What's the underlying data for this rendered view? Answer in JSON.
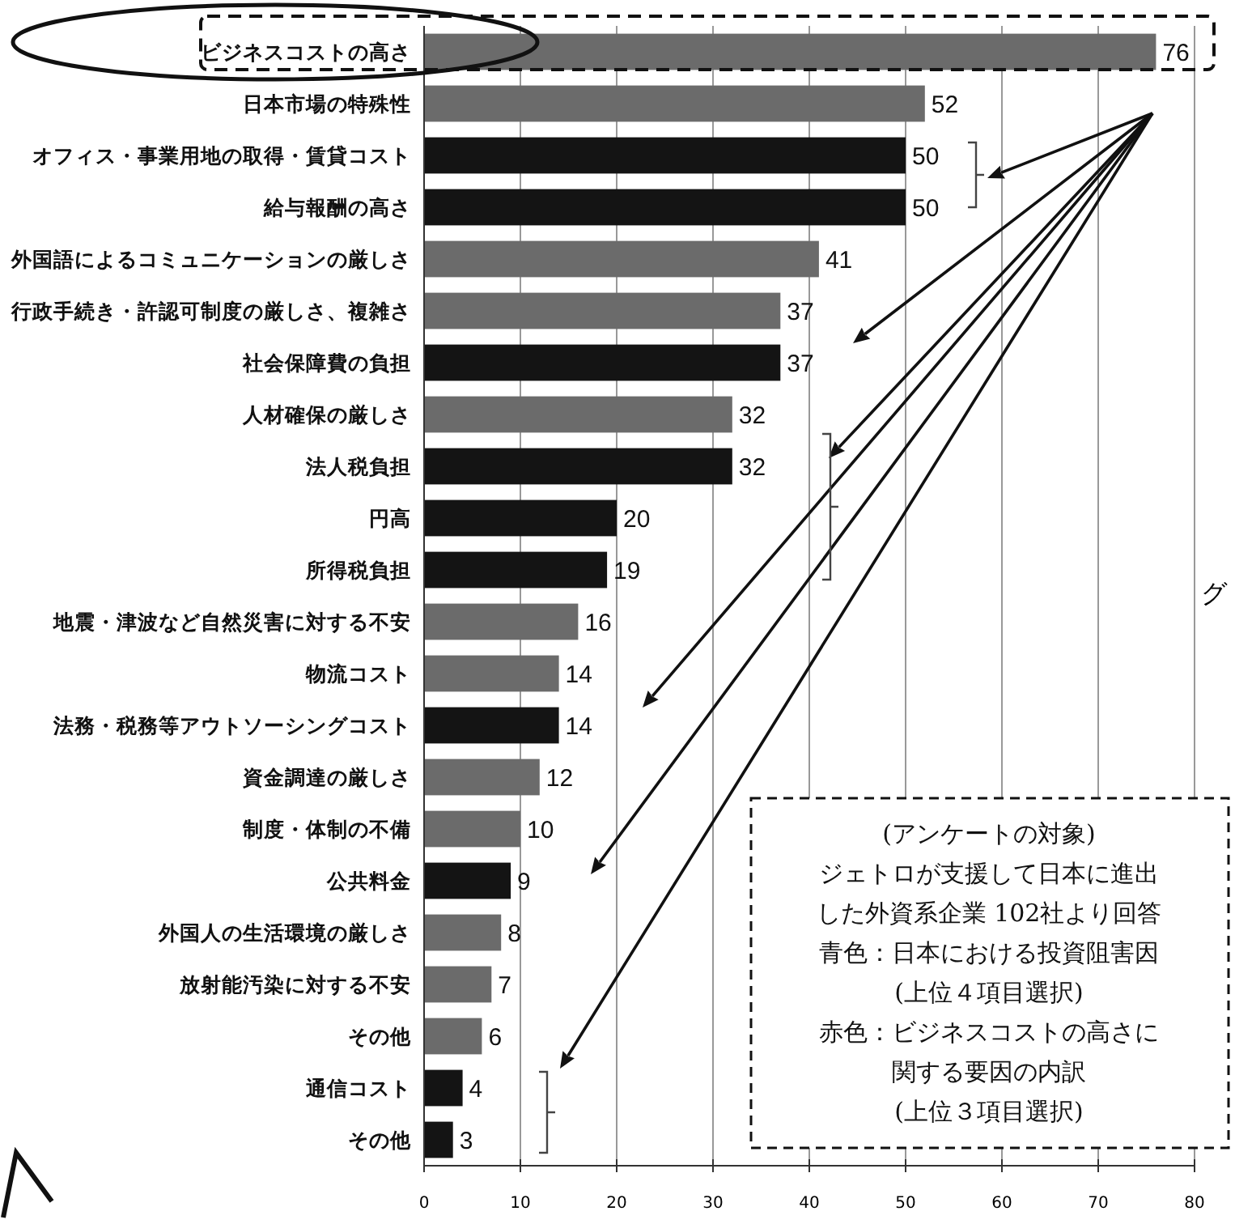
{
  "chart_data": {
    "type": "bar",
    "orientation": "horizontal",
    "categories": [
      "ビジネスコストの高さ",
      "日本市場の特殊性",
      "オフィス・事業用地の取得・賃貸コスト",
      "給与報酬の高さ",
      "外国語によるコミュニケーションの厳しさ",
      "行政手続き・許認可制度の厳しさ、複雑さ",
      "社会保障費の負担",
      "人材確保の厳しさ",
      "法人税負担",
      "円高",
      "所得税負担",
      "地震・津波など自然災害に対する不安",
      "物流コスト",
      "法務・税務等アウトソーシングコスト",
      "資金調達の厳しさ",
      "制度・体制の不備",
      "公共料金",
      "外国人の生活環境の厳しさ",
      "放射能汚染に対する不安",
      "その他",
      "通信コスト",
      "その他"
    ],
    "values": [
      76,
      52,
      50,
      50,
      41,
      37,
      37,
      32,
      32,
      20,
      19,
      16,
      14,
      14,
      12,
      10,
      9,
      8,
      7,
      6,
      4,
      3
    ],
    "colors": [
      "#6b6b6b",
      "#6b6b6b",
      "#141414",
      "#141414",
      "#6b6b6b",
      "#6b6b6b",
      "#141414",
      "#6b6b6b",
      "#141414",
      "#141414",
      "#141414",
      "#6b6b6b",
      "#6b6b6b",
      "#141414",
      "#6b6b6b",
      "#6b6b6b",
      "#141414",
      "#6b6b6b",
      "#6b6b6b",
      "#6b6b6b",
      "#141414",
      "#141414"
    ],
    "xlim": [
      0,
      80
    ],
    "xticks": [
      0,
      10,
      20,
      30,
      40,
      50,
      60,
      70,
      80
    ],
    "grid": "x",
    "data_labels": true,
    "annotations": [
      "(アンケートの対象)",
      "ジェトロが支援して日本に進出",
      "した外資系企業 102社より回答",
      "青色：日本における投資阻害因",
      "(上位４項目選択)",
      "赤色：ビジネスコストの高さに",
      "関する要因の内訳",
      "(上位３項目選択)",
      "グ"
    ]
  }
}
